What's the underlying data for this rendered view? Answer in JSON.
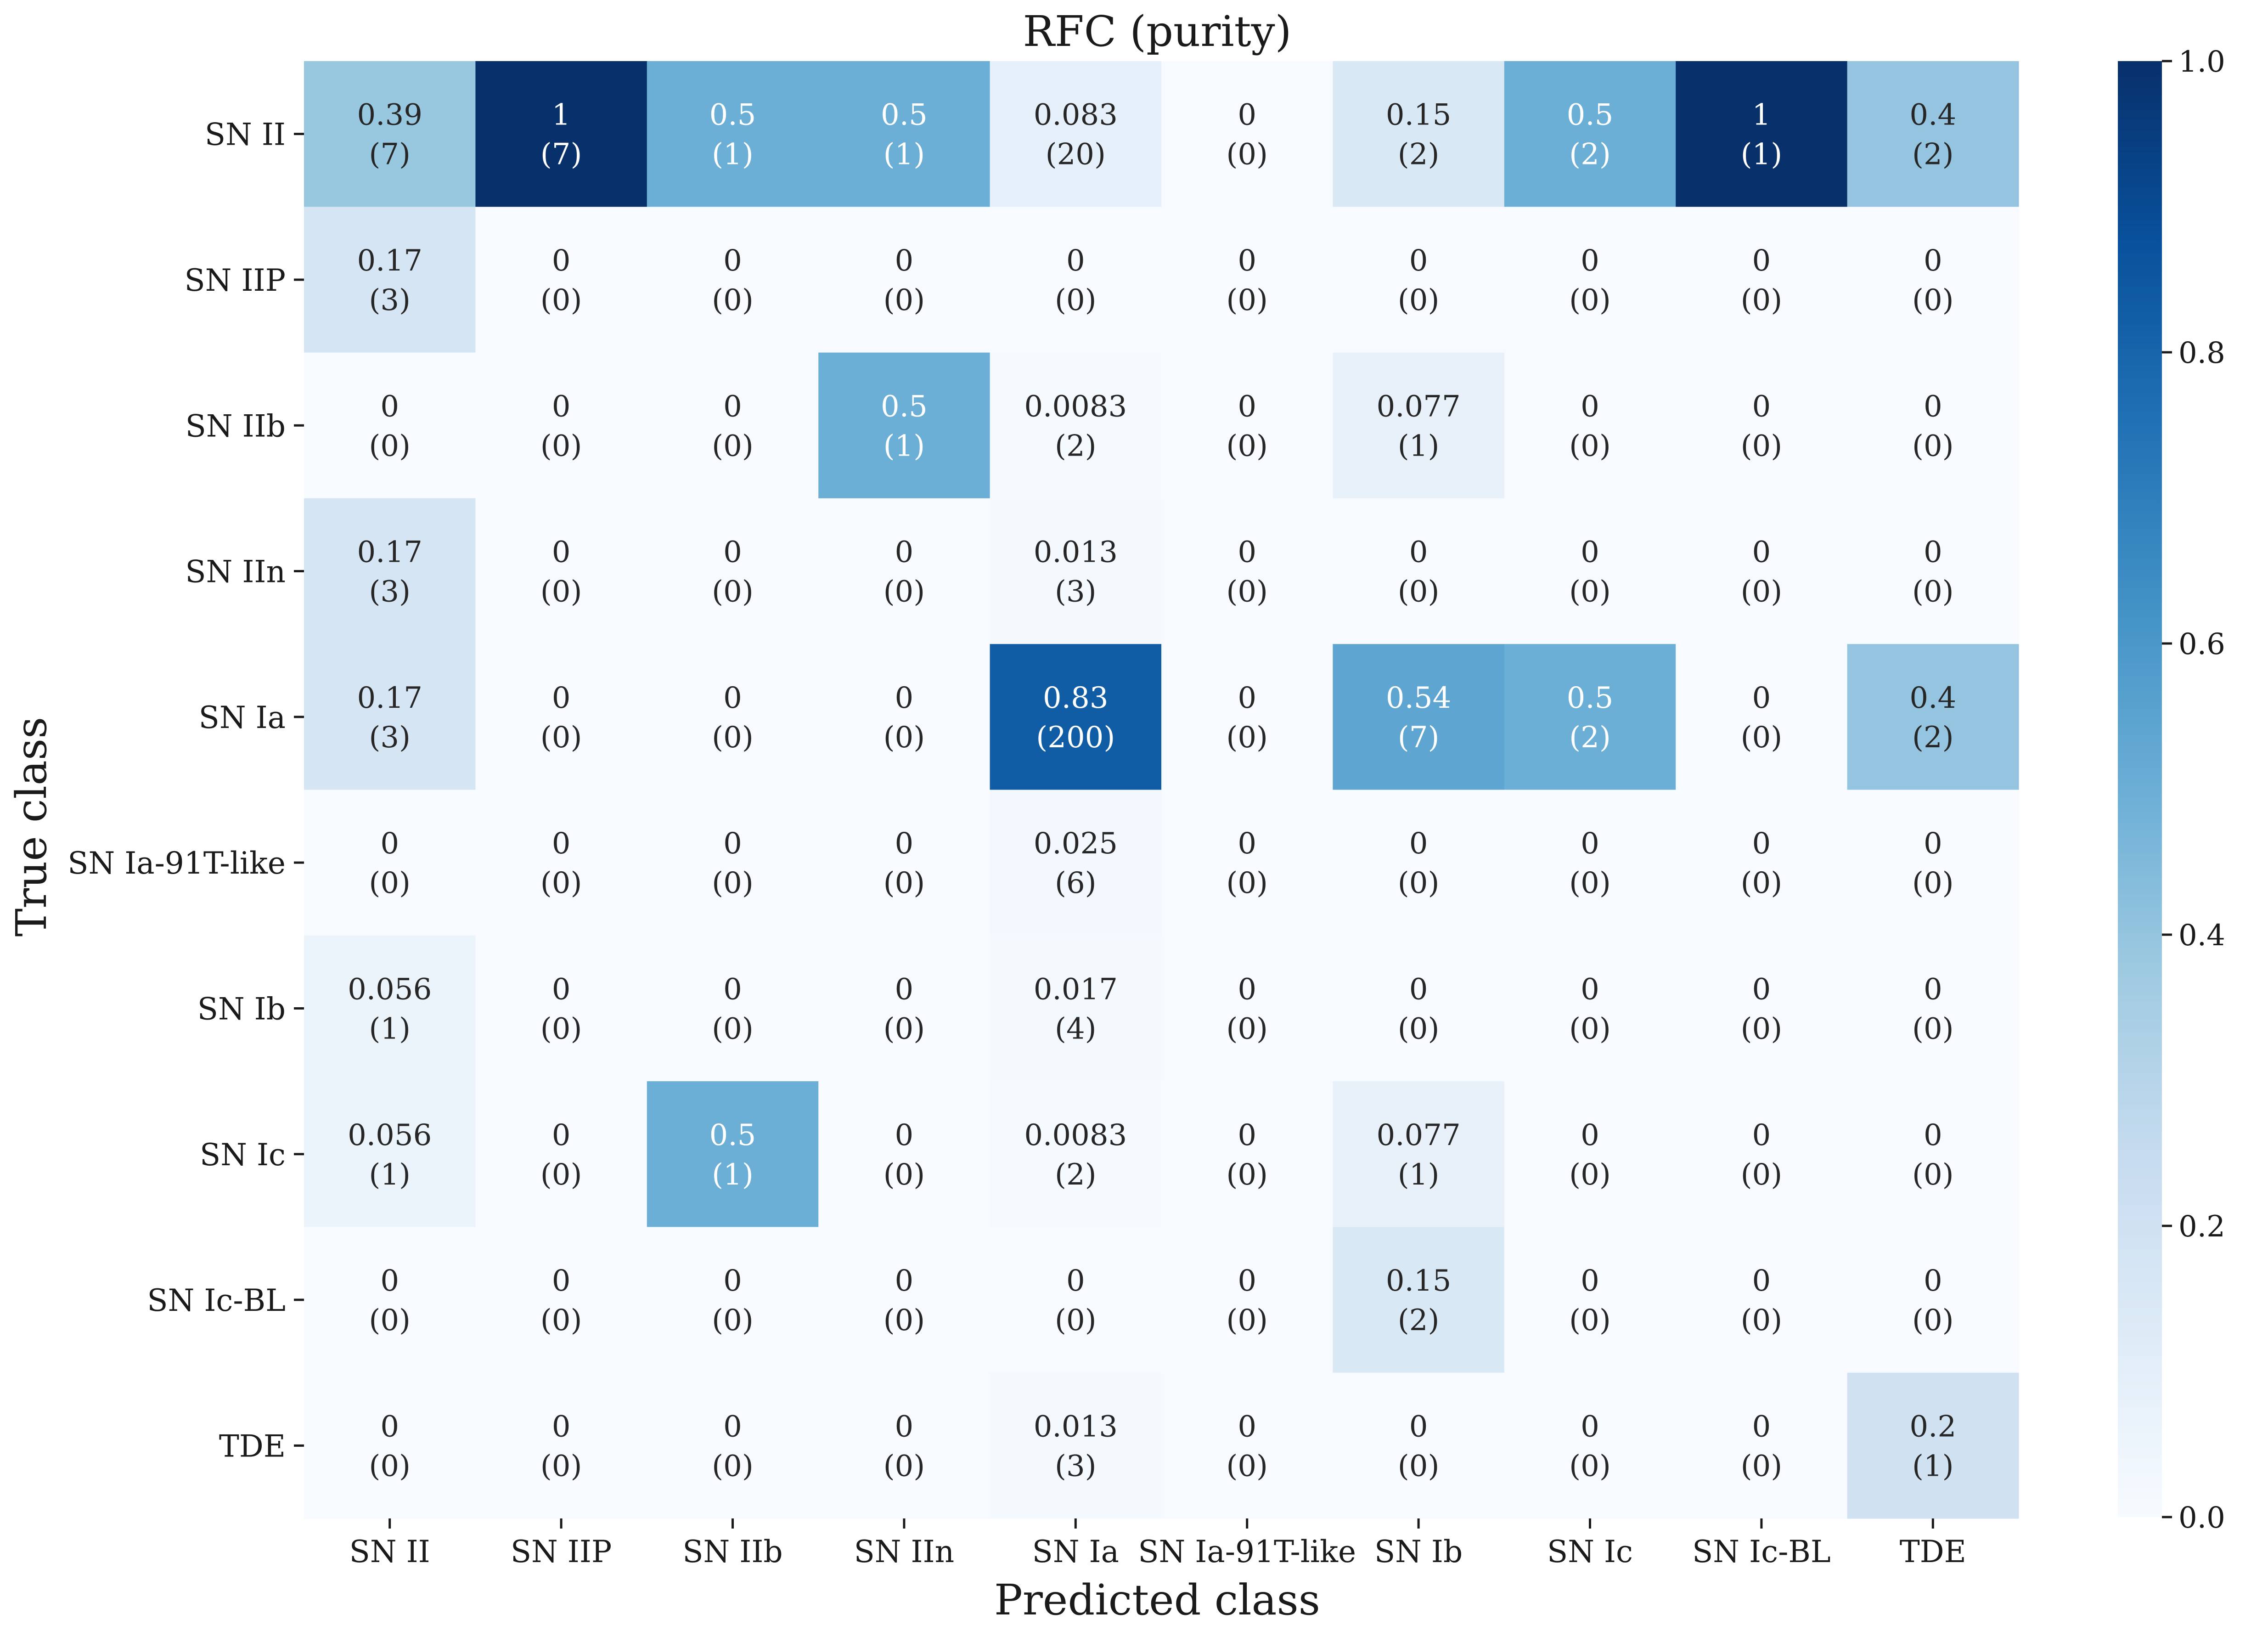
{
  "chart_data": {
    "type": "heatmap",
    "title": "RFC (purity)",
    "xlabel": "Predicted class",
    "ylabel": "True class",
    "x_categories": [
      "SN II",
      "SN IIP",
      "SN IIb",
      "SN IIn",
      "SN Ia",
      "SN Ia-91T-like",
      "SN Ib",
      "SN Ic",
      "SN Ic-BL",
      "TDE"
    ],
    "y_categories": [
      "SN II",
      "SN IIP",
      "SN IIb",
      "SN IIn",
      "SN Ia",
      "SN Ia-91T-like",
      "SN Ib",
      "SN Ic",
      "SN Ic-BL",
      "TDE"
    ],
    "values": [
      [
        0.39,
        1,
        0.5,
        0.5,
        0.083,
        0,
        0.15,
        0.5,
        1,
        0.4
      ],
      [
        0.17,
        0,
        0,
        0,
        0,
        0,
        0,
        0,
        0,
        0
      ],
      [
        0,
        0,
        0,
        0.5,
        0.0083,
        0,
        0.077,
        0,
        0,
        0
      ],
      [
        0.17,
        0,
        0,
        0,
        0.013,
        0,
        0,
        0,
        0,
        0
      ],
      [
        0.17,
        0,
        0,
        0,
        0.83,
        0,
        0.54,
        0.5,
        0,
        0.4
      ],
      [
        0,
        0,
        0,
        0,
        0.025,
        0,
        0,
        0,
        0,
        0
      ],
      [
        0.056,
        0,
        0,
        0,
        0.017,
        0,
        0,
        0,
        0,
        0
      ],
      [
        0.056,
        0,
        0.5,
        0,
        0.0083,
        0,
        0.077,
        0,
        0,
        0
      ],
      [
        0,
        0,
        0,
        0,
        0,
        0,
        0.15,
        0,
        0,
        0
      ],
      [
        0,
        0,
        0,
        0,
        0.013,
        0,
        0,
        0,
        0,
        0.2
      ]
    ],
    "counts": [
      [
        7,
        7,
        1,
        1,
        20,
        0,
        2,
        2,
        1,
        2
      ],
      [
        3,
        0,
        0,
        0,
        0,
        0,
        0,
        0,
        0,
        0
      ],
      [
        0,
        0,
        0,
        1,
        2,
        0,
        1,
        0,
        0,
        0
      ],
      [
        3,
        0,
        0,
        0,
        3,
        0,
        0,
        0,
        0,
        0
      ],
      [
        3,
        0,
        0,
        0,
        200,
        0,
        7,
        2,
        0,
        2
      ],
      [
        0,
        0,
        0,
        0,
        6,
        0,
        0,
        0,
        0,
        0
      ],
      [
        1,
        0,
        0,
        0,
        4,
        0,
        0,
        0,
        0,
        0
      ],
      [
        1,
        0,
        1,
        0,
        2,
        0,
        1,
        0,
        0,
        0
      ],
      [
        0,
        0,
        0,
        0,
        0,
        0,
        2,
        0,
        0,
        0
      ],
      [
        0,
        0,
        0,
        0,
        3,
        0,
        0,
        0,
        0,
        1
      ]
    ],
    "colorbar": {
      "range": [
        0.0,
        1.0
      ],
      "ticks": [
        "0.0",
        "0.2",
        "0.4",
        "0.6",
        "0.8",
        "1.0"
      ],
      "colormap": "Blues",
      "colors": [
        "#f7fbff",
        "#deebf7",
        "#c6dbef",
        "#9ecae1",
        "#6baed6",
        "#4292c6",
        "#2171b5",
        "#08519c",
        "#08306b"
      ]
    },
    "annotation_colors": {
      "dark_text": "#262626",
      "light_text": "#ffffff"
    }
  }
}
